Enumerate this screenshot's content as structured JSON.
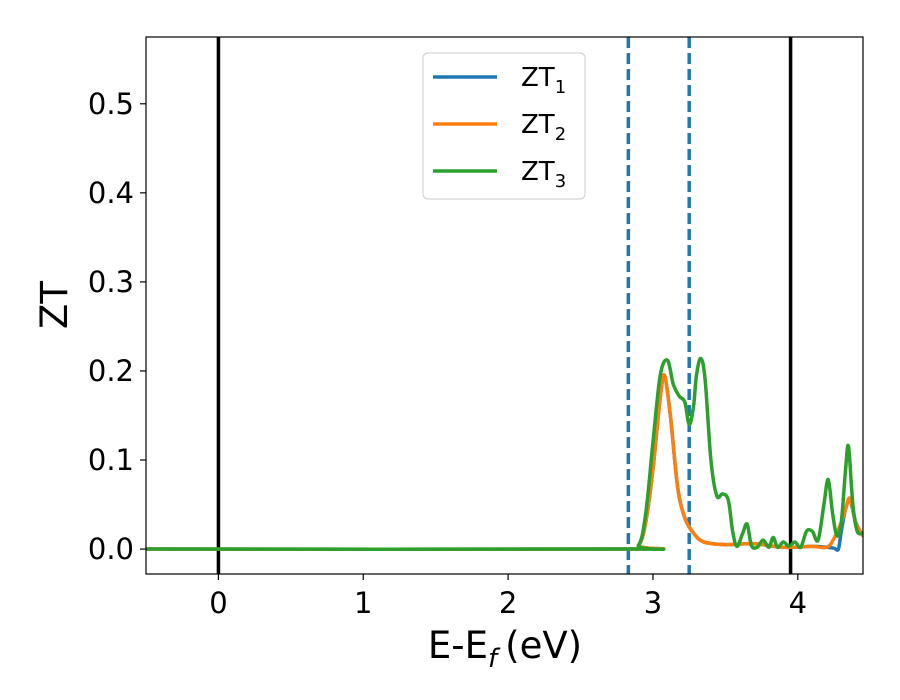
{
  "chart_data": {
    "type": "line",
    "xlabel": "E-E",
    "xlabel_subscript": "f",
    "xlabel_unit": "(eV)",
    "ylabel": "ZT",
    "xlim": [
      -0.5,
      4.45
    ],
    "ylim": [
      -0.028,
      0.575
    ],
    "x_ticks": [
      0,
      1,
      2,
      3,
      4
    ],
    "x_tick_labels": [
      "0",
      "1",
      "2",
      "3",
      "4"
    ],
    "y_ticks": [
      0.0,
      0.1,
      0.2,
      0.3,
      0.4,
      0.5
    ],
    "y_tick_labels": [
      "0.0",
      "0.1",
      "0.2",
      "0.3",
      "0.4",
      "0.5"
    ],
    "grid": false,
    "legend_position": "top-center",
    "solid_vlines": [
      0.0,
      3.95
    ],
    "dashed_vlines": [
      2.83,
      3.25
    ],
    "vline_colors": {
      "solid": "#000000",
      "dashed": "#1f77b4"
    },
    "series": [
      {
        "name": "ZT",
        "subscript": "1",
        "color": "#1f77b4",
        "x": [
          -0.5,
          2.8,
          2.9,
          2.95,
          3.0,
          3.05,
          3.08,
          3.12,
          3.17,
          3.22,
          3.28,
          3.35,
          3.5,
          3.7,
          3.9,
          4.1,
          4.2,
          4.25,
          4.28,
          4.3,
          4.33,
          4.36,
          4.4,
          4.45
        ],
        "y": [
          0.0,
          0.0,
          0.004,
          0.03,
          0.09,
          0.17,
          0.195,
          0.15,
          0.07,
          0.035,
          0.018,
          0.008,
          0.005,
          0.006,
          0.002,
          0.003,
          0.002,
          0.001,
          0.0,
          0.02,
          0.045,
          0.055,
          0.03,
          0.015
        ]
      },
      {
        "name": "ZT",
        "subscript": "2",
        "color": "#ff7f0e",
        "x": [
          -0.5,
          2.8,
          2.9,
          2.95,
          3.0,
          3.05,
          3.08,
          3.12,
          3.17,
          3.22,
          3.28,
          3.35,
          3.5,
          3.7,
          3.9,
          4.1,
          4.2,
          4.25,
          4.3,
          4.33,
          4.36,
          4.4,
          4.45
        ],
        "y": [
          0.0,
          0.0,
          0.004,
          0.03,
          0.09,
          0.17,
          0.195,
          0.15,
          0.07,
          0.035,
          0.018,
          0.008,
          0.005,
          0.006,
          0.002,
          0.003,
          0.002,
          0.012,
          0.03,
          0.045,
          0.057,
          0.03,
          0.015
        ]
      },
      {
        "name": "ZT",
        "subscript": "3",
        "color": "#2ca02c",
        "x": [
          -0.5,
          2.8,
          2.9,
          2.95,
          3.0,
          3.05,
          3.1,
          3.14,
          3.18,
          3.22,
          3.25,
          3.28,
          3.3,
          3.33,
          3.36,
          3.4,
          3.44,
          3.48,
          3.52,
          3.55,
          3.58,
          3.62,
          3.65,
          3.68,
          3.72,
          3.76,
          3.8,
          3.83,
          3.86,
          3.9,
          3.94,
          3.98,
          4.02,
          4.06,
          4.1,
          4.14,
          4.18,
          4.21,
          4.24,
          4.27,
          4.3,
          4.33,
          4.35,
          4.38,
          4.41,
          4.45
        ],
        "y": [
          0.0,
          0.0,
          0.004,
          0.04,
          0.12,
          0.195,
          0.212,
          0.185,
          0.172,
          0.165,
          0.14,
          0.16,
          0.195,
          0.214,
          0.19,
          0.1,
          0.06,
          0.062,
          0.055,
          0.02,
          0.003,
          0.018,
          0.028,
          0.004,
          0.002,
          0.01,
          0.002,
          0.013,
          0.002,
          0.008,
          0.003,
          0.008,
          0.002,
          0.02,
          0.02,
          0.01,
          0.05,
          0.078,
          0.04,
          0.015,
          0.03,
          0.09,
          0.115,
          0.05,
          0.02,
          0.018
        ]
      }
    ]
  }
}
